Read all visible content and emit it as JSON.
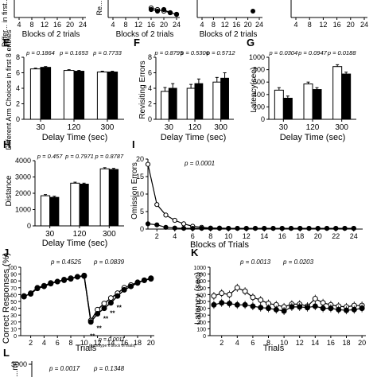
{
  "chart_data": [
    {
      "type": "line",
      "panel": "top-left",
      "ylabel": "Differ... in first...",
      "xlabel": "Blocks of 2 trials",
      "x_ticks": [
        "4",
        "8",
        "12",
        "16",
        "20",
        "24"
      ]
    },
    {
      "type": "scatter",
      "panel": "top-middle",
      "ylabel": "Re...",
      "xlabel": "Blocks of 2 trials",
      "x_ticks": [
        "4",
        "8",
        "12",
        "16",
        "20",
        "24"
      ],
      "series": [
        {
          "name": "open",
          "x": [
            16,
            18,
            20,
            22,
            24
          ],
          "y": [
            0.6,
            0.5,
            0.4,
            0.3,
            0.2
          ]
        },
        {
          "name": "filled",
          "x": [
            16,
            18,
            20,
            22,
            24
          ],
          "y": [
            0.5,
            0.4,
            0.5,
            0.3,
            0.2
          ]
        }
      ]
    },
    {
      "type": "scatter",
      "panel": "top-right-1",
      "xlabel": "Blocks of 2 trials",
      "x_ticks": [
        "4",
        "8",
        "12",
        "16",
        "20",
        "24"
      ]
    },
    {
      "type": "line",
      "panel": "top-right-2",
      "x_ticks": [
        "4",
        "8",
        "12",
        "16",
        "20",
        "24"
      ]
    },
    {
      "type": "bar",
      "panel": "E",
      "label": "E",
      "ylabel": "Different Arm Choices in first 8 entries",
      "xlabel": "Delay Time (sec)",
      "categories": [
        "30",
        "120",
        "300"
      ],
      "ylim": [
        0,
        8
      ],
      "y_ticks": [
        0,
        2,
        4,
        6,
        8
      ],
      "p_values": [
        "p = 0.1864",
        "p = 0.1653",
        "p = 0.7733"
      ],
      "series": [
        {
          "name": "white",
          "values": [
            6.5,
            6.3,
            6.1
          ],
          "errors": [
            0.1,
            0.1,
            0.1
          ]
        },
        {
          "name": "black",
          "values": [
            6.7,
            6.2,
            6.1
          ],
          "errors": [
            0.1,
            0.1,
            0.1
          ]
        }
      ]
    },
    {
      "type": "bar",
      "panel": "F",
      "label": "F",
      "ylabel": "Revisiting Errors",
      "xlabel": "Delay Time (sec)",
      "categories": [
        "30",
        "120",
        "300"
      ],
      "ylim": [
        0,
        8
      ],
      "y_ticks": [
        0,
        2,
        4,
        6,
        8
      ],
      "p_values": [
        "p = 0.8795",
        "p = 0.5306",
        "p = 0.5712"
      ],
      "series": [
        {
          "name": "white",
          "values": [
            3.6,
            4.0,
            4.8
          ],
          "errors": [
            0.5,
            0.5,
            0.6
          ]
        },
        {
          "name": "black",
          "values": [
            4.0,
            4.6,
            5.3
          ],
          "errors": [
            0.6,
            0.6,
            0.7
          ]
        }
      ]
    },
    {
      "type": "bar",
      "panel": "G",
      "label": "G",
      "ylabel": "Latency(sec)",
      "xlabel": "Delay Time (sec)",
      "categories": [
        "30",
        "120",
        "300"
      ],
      "ylim": [
        0,
        1000
      ],
      "y_ticks": [
        0,
        200,
        400,
        600,
        800,
        1000
      ],
      "p_values": [
        "p = 0.0304",
        "p = 0.0947",
        "p = 0.0188"
      ],
      "series": [
        {
          "name": "white",
          "values": [
            470,
            570,
            850
          ],
          "errors": [
            40,
            30,
            30
          ]
        },
        {
          "name": "black",
          "values": [
            340,
            480,
            730
          ],
          "errors": [
            35,
            30,
            30
          ]
        }
      ]
    },
    {
      "type": "bar",
      "panel": "H",
      "label": "H",
      "ylabel": "Distance",
      "xlabel": "Delay Time (sec)",
      "categories": [
        "30",
        "120",
        "300"
      ],
      "ylim": [
        0,
        4000
      ],
      "y_ticks": [
        0,
        1000,
        2000,
        3000,
        4000
      ],
      "p_values": [
        "p = 0.457",
        "p = 0.7971",
        "p = 0.8787"
      ],
      "series": [
        {
          "name": "white",
          "values": [
            1850,
            2620,
            3500
          ],
          "errors": [
            70,
            60,
            70
          ]
        },
        {
          "name": "black",
          "values": [
            1750,
            2560,
            3460
          ],
          "errors": [
            70,
            60,
            70
          ]
        }
      ]
    },
    {
      "type": "line",
      "panel": "I",
      "label": "I",
      "ylabel": "Omission Errors",
      "xlabel": "Blocks of Trials",
      "xlim": [
        1,
        25
      ],
      "ylim": [
        0,
        20
      ],
      "x_ticks": [
        2,
        4,
        6,
        8,
        10,
        12,
        14,
        16,
        18,
        20,
        22,
        24
      ],
      "y_ticks": [
        0,
        5,
        10,
        15,
        20
      ],
      "p_values": [
        "p = 0.0001"
      ],
      "series": [
        {
          "name": "open",
          "x": [
            1,
            2,
            3,
            4,
            5,
            6,
            7,
            8,
            9,
            10,
            11,
            12,
            13,
            14,
            15,
            16,
            17,
            18,
            19,
            20,
            21,
            22,
            23,
            24
          ],
          "y": [
            18.5,
            7,
            4,
            2.5,
            1.5,
            0.8,
            0.5,
            0.3,
            0.3,
            0.2,
            0.2,
            0.2,
            0.2,
            0.2,
            0.2,
            0.2,
            0.2,
            0.2,
            0.2,
            0.2,
            0.2,
            0.2,
            0.2,
            0.2
          ]
        },
        {
          "name": "filled",
          "x": [
            1,
            2,
            3,
            4,
            5,
            6,
            7,
            8,
            9,
            10,
            11,
            12,
            13,
            14,
            15,
            16,
            17,
            18,
            19,
            20,
            21,
            22,
            23,
            24
          ],
          "y": [
            1.5,
            1.2,
            0.5,
            0.3,
            0.2,
            0.2,
            0.2,
            0.2,
            0.2,
            0.2,
            0.2,
            0.2,
            0.2,
            0.2,
            0.2,
            0.2,
            0.2,
            0.2,
            0.2,
            0.2,
            0.2,
            0.2,
            0.2,
            0.2
          ]
        }
      ]
    },
    {
      "type": "line",
      "panel": "J",
      "label": "J",
      "ylabel": "Correct Responses (%)",
      "xlabel": "Trials",
      "xlim": [
        0.5,
        20.5
      ],
      "ylim": [
        0,
        100
      ],
      "x_ticks": [
        2,
        4,
        6,
        8,
        10,
        12,
        14,
        16,
        18,
        20
      ],
      "y_ticks": [
        0,
        10,
        20,
        30,
        40,
        50,
        60,
        70,
        80,
        90,
        100
      ],
      "p_values": [
        "p = 0.4525",
        "p = 0.0839"
      ],
      "annotations": [
        "p = 0.0011",
        "(genotype x block of trials)"
      ],
      "series": [
        {
          "name": "open",
          "x": [
            1,
            2,
            3,
            4,
            5,
            6,
            7,
            8,
            9,
            10,
            11,
            12,
            13,
            14,
            15,
            16,
            17,
            18,
            19,
            20
          ],
          "y": [
            57,
            62,
            70,
            73,
            77,
            79,
            82,
            84,
            86,
            87,
            22,
            38,
            47,
            55,
            62,
            70,
            74,
            78,
            81,
            83
          ]
        },
        {
          "name": "filled",
          "x": [
            1,
            2,
            3,
            4,
            5,
            6,
            7,
            8,
            9,
            10,
            11,
            12,
            13,
            14,
            15,
            16,
            17,
            18,
            19,
            20
          ],
          "y": [
            58,
            61,
            69,
            72,
            76,
            79,
            81,
            83,
            86,
            88,
            20,
            32,
            40,
            48,
            58,
            67,
            72,
            77,
            81,
            84
          ]
        }
      ]
    },
    {
      "type": "line",
      "panel": "K",
      "label": "K",
      "ylabel": "Latency (sec)",
      "xlabel": "Trials",
      "xlim": [
        0.5,
        20.5
      ],
      "ylim": [
        0,
        1000
      ],
      "x_ticks": [
        2,
        4,
        6,
        8,
        10,
        12,
        14,
        16,
        18,
        20
      ],
      "y_ticks": [
        0,
        100,
        200,
        300,
        400,
        500,
        600,
        700,
        800,
        900,
        1000
      ],
      "p_values": [
        "p = 0.0013",
        "p = 0.0203"
      ],
      "series": [
        {
          "name": "open",
          "x": [
            1,
            2,
            3,
            4,
            5,
            6,
            7,
            8,
            9,
            10,
            11,
            12,
            13,
            14,
            15,
            16,
            17,
            18,
            19,
            20
          ],
          "y": [
            580,
            620,
            600,
            700,
            650,
            560,
            520,
            470,
            450,
            420,
            460,
            460,
            430,
            540,
            480,
            450,
            430,
            420,
            440,
            440
          ]
        },
        {
          "name": "filled",
          "x": [
            1,
            2,
            3,
            4,
            5,
            6,
            7,
            8,
            9,
            10,
            11,
            12,
            13,
            14,
            15,
            16,
            17,
            18,
            19,
            20
          ],
          "y": [
            450,
            480,
            470,
            450,
            450,
            430,
            410,
            400,
            380,
            360,
            420,
            420,
            410,
            430,
            400,
            400,
            380,
            370,
            380,
            400
          ]
        }
      ]
    },
    {
      "type": "line",
      "panel": "L",
      "label": "L",
      "ylabel": "...m)",
      "y_ticks": [
        3000
      ],
      "p_values": [
        "p = 0.0017",
        "p = 0.1348"
      ]
    }
  ]
}
